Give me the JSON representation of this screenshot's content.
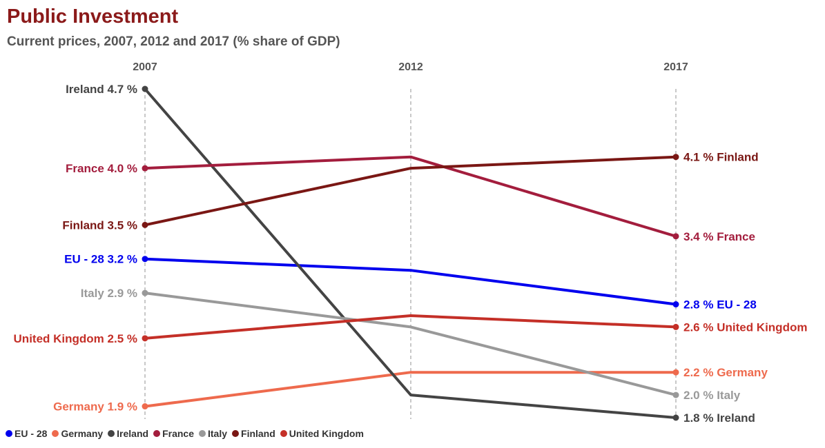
{
  "chart_data": {
    "type": "line",
    "title": "Public Investment",
    "subtitle": "Current prices, 2007, 2012 and 2017 (% share of GDP)",
    "x": [
      "2007",
      "2012",
      "2017"
    ],
    "ylim": [
      1.8,
      4.7
    ],
    "grid": "vertical dashed at each year",
    "legend_position": "bottom-left",
    "series": [
      {
        "name": "EU - 28",
        "color": "#0000ee",
        "values": [
          3.2,
          3.1,
          2.8
        ],
        "start_label": "EU - 28 3.2 %",
        "end_label": "2.8 % EU - 28"
      },
      {
        "name": "Germany",
        "color": "#ee6a4d",
        "values": [
          1.9,
          2.2,
          2.2
        ],
        "start_label": "Germany 1.9 %",
        "end_label": "2.2 % Germany"
      },
      {
        "name": "Ireland",
        "color": "#444444",
        "values": [
          4.7,
          2.0,
          1.8
        ],
        "start_label": "Ireland 4.7 %",
        "end_label": "1.8 % Ireland"
      },
      {
        "name": "France",
        "color": "#a31d3d",
        "values": [
          4.0,
          4.1,
          3.4
        ],
        "start_label": "France 4.0 %",
        "end_label": "3.4 % France"
      },
      {
        "name": "Italy",
        "color": "#999999",
        "values": [
          2.9,
          2.6,
          2.0
        ],
        "start_label": "Italy 2.9 %",
        "end_label": "2.0 % Italy"
      },
      {
        "name": "Finland",
        "color": "#7a1714",
        "values": [
          3.5,
          4.0,
          4.1
        ],
        "start_label": "Finland 3.5 %",
        "end_label": "4.1 % Finland"
      },
      {
        "name": "United Kingdom",
        "color": "#c42f27",
        "values": [
          2.5,
          2.7,
          2.6
        ],
        "start_label": "United Kingdom 2.5 %",
        "end_label": "2.6 % United Kingdom"
      }
    ]
  }
}
